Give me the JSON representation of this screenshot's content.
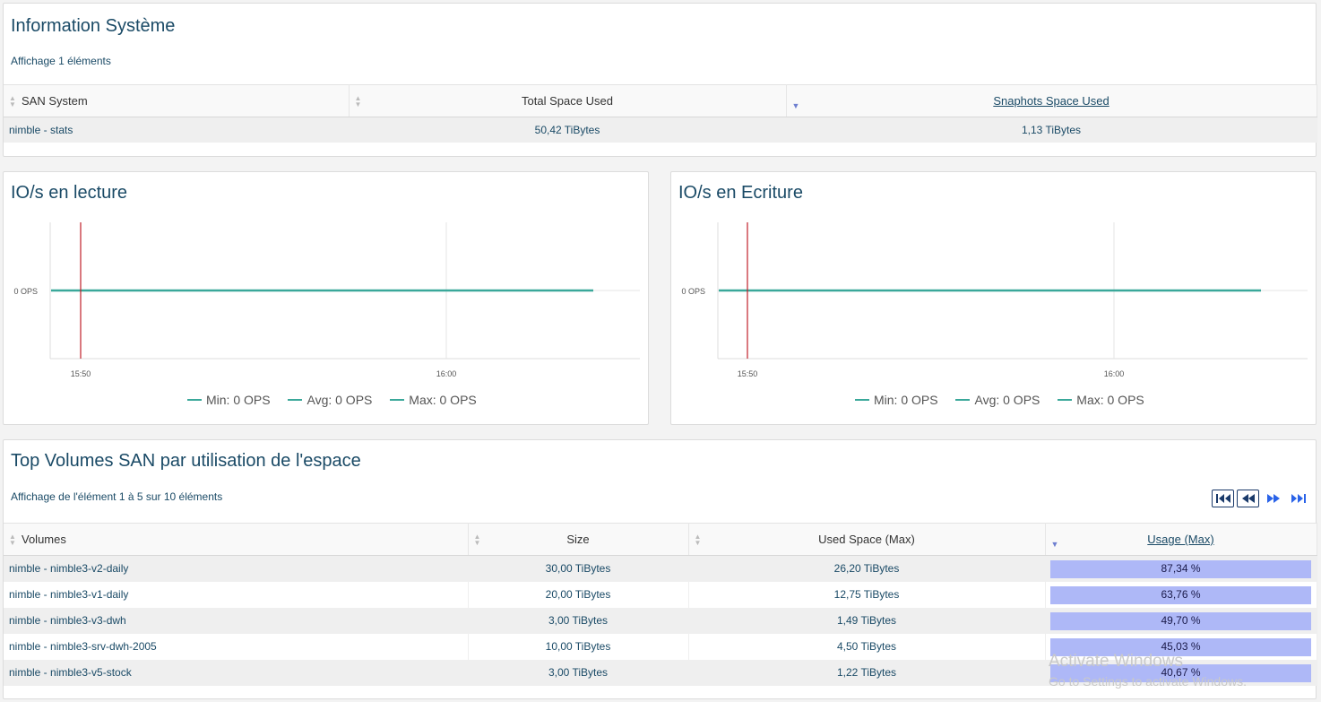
{
  "system_panel": {
    "title": "Information Système",
    "subtitle": "Affichage 1 éléments",
    "columns": [
      "SAN System",
      "Total Space Used",
      "Snaphots Space Used"
    ],
    "rows": [
      [
        "nimble - stats",
        "50,42 TiBytes",
        "1,13 TiBytes"
      ]
    ]
  },
  "read_chart": {
    "title": "IO/s en lecture",
    "y_tick": "0 OPS",
    "x_ticks": [
      "15:50",
      "16:00"
    ],
    "legend": [
      "Min: 0 OPS",
      "Avg: 0 OPS",
      "Max: 0 OPS"
    ]
  },
  "write_chart": {
    "title": "IO/s en Ecriture",
    "y_tick": "0 OPS",
    "x_ticks": [
      "15:50",
      "16:00"
    ],
    "legend": [
      "Min: 0 OPS",
      "Avg: 0 OPS",
      "Max: 0 OPS"
    ]
  },
  "chart_data": [
    {
      "type": "line",
      "title": "IO/s en lecture",
      "x_ticks": [
        "15:50",
        "16:00"
      ],
      "y_ticks": [
        "0 OPS"
      ],
      "series": [
        {
          "name": "Min: 0 OPS",
          "values": [
            0,
            0
          ]
        },
        {
          "name": "Avg: 0 OPS",
          "values": [
            0,
            0
          ]
        },
        {
          "name": "Max: 0 OPS",
          "values": [
            0,
            0
          ]
        }
      ],
      "marker_line": "15:50",
      "grid": true,
      "legend": "bottom"
    },
    {
      "type": "line",
      "title": "IO/s en Ecriture",
      "x_ticks": [
        "15:50",
        "16:00"
      ],
      "y_ticks": [
        "0 OPS"
      ],
      "series": [
        {
          "name": "Min: 0 OPS",
          "values": [
            0,
            0
          ]
        },
        {
          "name": "Avg: 0 OPS",
          "values": [
            0,
            0
          ]
        },
        {
          "name": "Max: 0 OPS",
          "values": [
            0,
            0
          ]
        }
      ],
      "marker_line": "15:50",
      "grid": true,
      "legend": "bottom"
    }
  ],
  "volumes_panel": {
    "title": "Top Volumes SAN par utilisation de l'espace",
    "subtitle": "Affichage de l'élément 1 à 5 sur 10 éléments",
    "columns": [
      "Volumes",
      "Size",
      "Used Space (Max)",
      "Usage (Max)"
    ],
    "rows": [
      {
        "name": "nimble - nimble3-v2-daily",
        "size": "30,00 TiBytes",
        "used": "26,20 TiBytes",
        "usage": "87,34 %",
        "usage_fraction": 0.8734
      },
      {
        "name": "nimble - nimble3-v1-daily",
        "size": "20,00 TiBytes",
        "used": "12,75 TiBytes",
        "usage": "63,76 %",
        "usage_fraction": 0.6376
      },
      {
        "name": "nimble - nimble3-v3-dwh",
        "size": "3,00 TiBytes",
        "used": "1,49 TiBytes",
        "usage": "49,70 %",
        "usage_fraction": 0.497
      },
      {
        "name": "nimble - nimble3-srv-dwh-2005",
        "size": "10,00 TiBytes",
        "used": "4,50 TiBytes",
        "usage": "45,03 %",
        "usage_fraction": 0.4503
      },
      {
        "name": "nimble - nimble3-v5-stock",
        "size": "3,00 TiBytes",
        "used": "1,22 TiBytes",
        "usage": "40,67 %",
        "usage_fraction": 0.4067
      }
    ],
    "pager_icons": [
      "first-page-icon",
      "previous-page-icon",
      "next-page-icon",
      "last-page-icon"
    ]
  },
  "watermark": {
    "line1": "Activate Windows",
    "line2": "Go to Settings to activate Windows."
  },
  "colors": {
    "title": "#1a4a66",
    "series_line": "#3aa89a",
    "marker_line": "#c0202a",
    "usage_bar": "#aeb8f7"
  }
}
